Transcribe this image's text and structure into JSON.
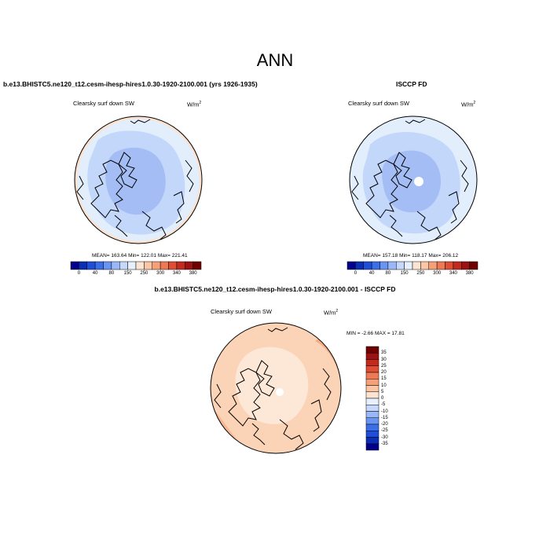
{
  "figure_title": "ANN",
  "top_left": {
    "case_title": "b.e13.BHISTC5.ne120_t12.cesm-ihesp-hires1.0.30-1920-2100.001 (yrs 1926-1935)",
    "variable": "Clearsky surf down SW",
    "units": "W/m",
    "units_sup": "2",
    "stats": "MEAN= 163.64  Min= 122.01  Max= 221.41"
  },
  "top_right": {
    "case_title": "ISCCP FD",
    "variable": "Clearsky surf down SW",
    "units": "W/m",
    "units_sup": "2",
    "stats": "MEAN= 157.18  Min= 118.17  Max= 206.12"
  },
  "bottom": {
    "case_title": "b.e13.BHISTC5.ne120_t12.cesm-ihesp-hires1.0.30-1920-2100.001 - ISCCP FD",
    "variable": "Clearsky surf down SW",
    "units": "W/m",
    "units_sup": "2",
    "minmax": "MIN =  -2.66 MAX =  17.81"
  },
  "colorbar_top": {
    "labels": [
      "0",
      "40",
      "80",
      "150",
      "250",
      "300",
      "340",
      "380"
    ],
    "colors": [
      "#00008b",
      "#0a2fb4",
      "#1f4fd8",
      "#3a6fe8",
      "#6a94f2",
      "#9ab8f7",
      "#c6d8fb",
      "#e7f0fe",
      "#fde4d2",
      "#fbc6a4",
      "#f6a07a",
      "#ee7a55",
      "#df4e34",
      "#c32a1d",
      "#9c1111",
      "#6e0000"
    ]
  },
  "colorbar_diff": {
    "labels": [
      "35",
      "30",
      "25",
      "20",
      "15",
      "10",
      "5",
      "0",
      "-5",
      "-10",
      "-15",
      "-20",
      "-25",
      "-30",
      "-35"
    ],
    "colors": [
      "#6e0000",
      "#9c1111",
      "#c32a1d",
      "#df4e34",
      "#ee7a55",
      "#f6a07a",
      "#fbc6a4",
      "#fde4d2",
      "#e7f0fe",
      "#c6d8fb",
      "#9ab8f7",
      "#6a94f2",
      "#3a6fe8",
      "#1f4fd8",
      "#0a2fb4",
      "#00008b"
    ]
  },
  "colors": {
    "model_outer": "#e3eefd",
    "model_mid": "#c3d7fb",
    "model_inner": "#a4bdf4",
    "obs_outer": "#e3eefd",
    "obs_mid": "#c3d7fb",
    "obs_inner": "#a4bdf4",
    "edge_warm": "#fbe1cd",
    "diff_base": "#fbd3b6",
    "diff_light": "#fde8d8",
    "diff_strong": "#f6ab86"
  }
}
